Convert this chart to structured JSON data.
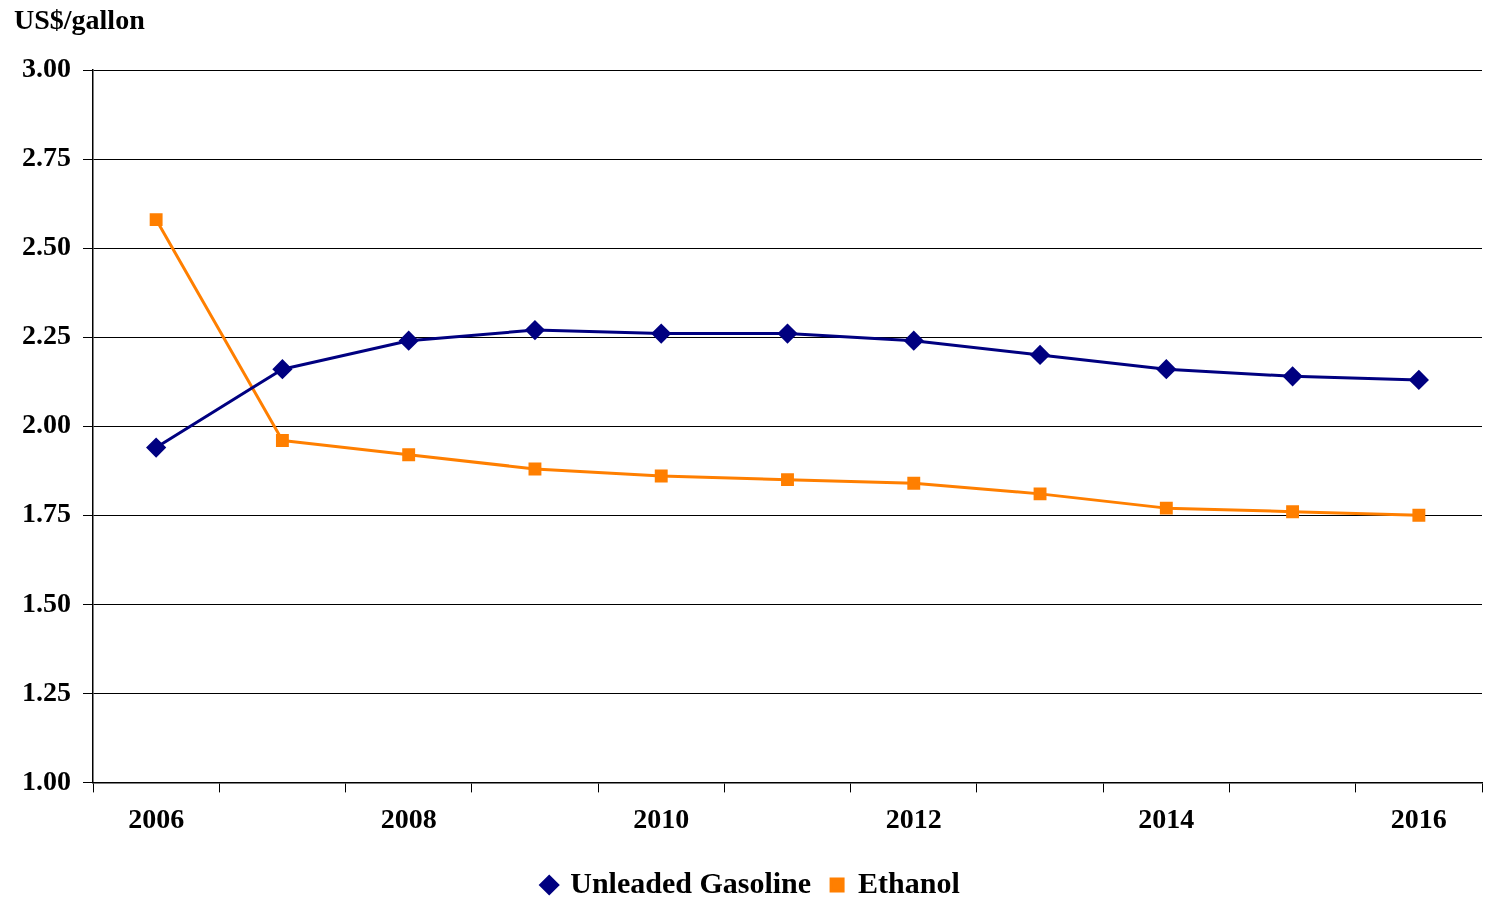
{
  "chart_data": {
    "type": "line",
    "ylabel": "US$/gallon",
    "categories": [
      "2006",
      null,
      "2008",
      null,
      "2010",
      null,
      "2012",
      null,
      "2014",
      null,
      "2016"
    ],
    "series": [
      {
        "name": "Unleaded Gasoline",
        "color": "#000080",
        "marker": "diamond",
        "values": [
          1.94,
          2.16,
          2.24,
          2.27,
          2.26,
          2.26,
          2.24,
          2.2,
          2.16,
          2.14,
          2.13
        ]
      },
      {
        "name": "Ethanol",
        "color": "#ff7f00",
        "marker": "square",
        "values": [
          2.58,
          1.96,
          1.92,
          1.88,
          1.86,
          1.85,
          1.84,
          1.81,
          1.77,
          1.76,
          1.75
        ]
      }
    ],
    "ylim": [
      1,
      3
    ],
    "yticks": [
      {
        "value": 1,
        "label": "1.00"
      },
      {
        "value": 1.25,
        "label": "1.25"
      },
      {
        "value": 1.5,
        "label": "1.50"
      },
      {
        "value": 1.75,
        "label": "1.75"
      },
      {
        "value": 2,
        "label": "2.00"
      },
      {
        "value": 2.25,
        "label": "2.25"
      },
      {
        "value": 2.5,
        "label": "2.50"
      },
      {
        "value": 2.75,
        "label": "2.75"
      },
      {
        "value": 3,
        "label": "3.00"
      }
    ],
    "grid": "y",
    "legend": "bottom",
    "line_style": "solid"
  }
}
